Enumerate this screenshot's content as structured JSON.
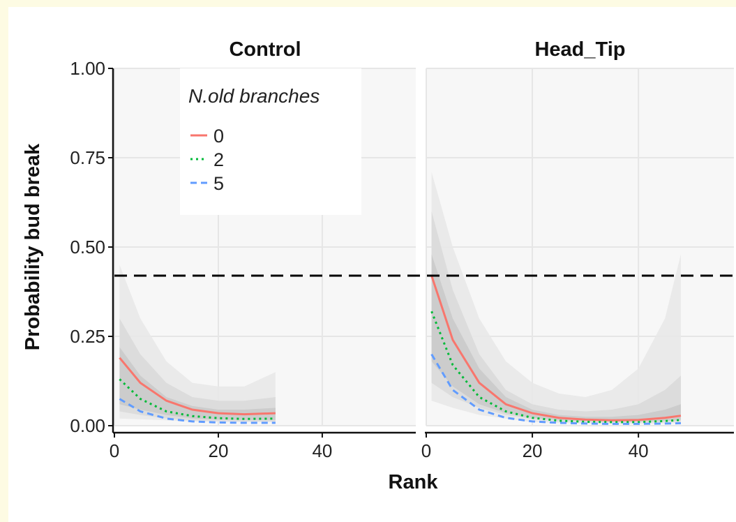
{
  "chart_data": {
    "type": "line",
    "facets": [
      "Control",
      "Head_Tip"
    ],
    "xlabel": "Rank",
    "ylabel": "Probability bud break",
    "xlim": [
      0,
      58
    ],
    "ylim": [
      0,
      1
    ],
    "x_ticks": [
      0,
      20,
      40
    ],
    "x_tick_labels": [
      "0",
      "20",
      "40"
    ],
    "y_ticks": [
      0,
      0.25,
      0.5,
      0.75,
      1.0
    ],
    "y_tick_labels": [
      "0.00",
      "0.25",
      "0.50",
      "0.75",
      "1.00"
    ],
    "reference_line": {
      "y": 0.42,
      "style": "dashed",
      "color": "#000000"
    },
    "legend": {
      "title": "N.old branches",
      "placement": "top-left",
      "entries": [
        {
          "label": "0",
          "color": "#f8766d",
          "dash": "solid"
        },
        {
          "label": "2",
          "color": "#00ba38",
          "dash": "dotted"
        },
        {
          "label": "5",
          "color": "#619cff",
          "dash": "dashed"
        }
      ]
    },
    "grid": true,
    "panels": [
      {
        "facet": "Control",
        "series": [
          {
            "name": "0",
            "x": [
              1,
              5,
              10,
              15,
              20,
              25,
              31
            ],
            "y": [
              0.19,
              0.12,
              0.07,
              0.045,
              0.035,
              0.032,
              0.035
            ]
          },
          {
            "name": "2",
            "x": [
              1,
              5,
              10,
              15,
              20,
              25,
              31
            ],
            "y": [
              0.13,
              0.075,
              0.04,
              0.027,
              0.021,
              0.019,
              0.02
            ]
          },
          {
            "name": "5",
            "x": [
              1,
              5,
              10,
              15,
              20,
              25,
              31
            ],
            "y": [
              0.075,
              0.04,
              0.02,
              0.012,
              0.009,
              0.008,
              0.008
            ]
          }
        ],
        "bands": [
          {
            "x": [
              1,
              5,
              10,
              15,
              20,
              25,
              31
            ],
            "lower": [
              0.02,
              0.018,
              0.015,
              0.012,
              0.01,
              0.01,
              0.01
            ],
            "upper": [
              0.45,
              0.3,
              0.18,
              0.12,
              0.11,
              0.11,
              0.15
            ]
          },
          {
            "x": [
              1,
              5,
              10,
              15,
              20,
              25,
              31
            ],
            "lower": [
              0.04,
              0.03,
              0.02,
              0.015,
              0.013,
              0.012,
              0.012
            ],
            "upper": [
              0.3,
              0.2,
              0.12,
              0.08,
              0.07,
              0.07,
              0.08
            ]
          },
          {
            "x": [
              1,
              5,
              10,
              15,
              20,
              25,
              31
            ],
            "lower": [
              0.06,
              0.045,
              0.03,
              0.02,
              0.017,
              0.016,
              0.016
            ],
            "upper": [
              0.22,
              0.14,
              0.08,
              0.055,
              0.045,
              0.045,
              0.05
            ]
          }
        ]
      },
      {
        "facet": "Head_Tip",
        "series": [
          {
            "name": "0",
            "x": [
              1,
              5,
              10,
              15,
              20,
              25,
              30,
              35,
              40,
              45,
              48
            ],
            "y": [
              0.42,
              0.24,
              0.12,
              0.06,
              0.035,
              0.022,
              0.017,
              0.015,
              0.016,
              0.022,
              0.028
            ]
          },
          {
            "name": "2",
            "x": [
              1,
              5,
              10,
              15,
              20,
              25,
              30,
              35,
              40,
              45,
              48
            ],
            "y": [
              0.32,
              0.17,
              0.08,
              0.04,
              0.022,
              0.014,
              0.011,
              0.01,
              0.01,
              0.013,
              0.016
            ]
          },
          {
            "name": "5",
            "x": [
              1,
              5,
              10,
              15,
              20,
              25,
              30,
              35,
              40,
              45,
              48
            ],
            "y": [
              0.2,
              0.1,
              0.045,
              0.022,
              0.012,
              0.008,
              0.006,
              0.005,
              0.005,
              0.006,
              0.007
            ]
          }
        ],
        "bands": [
          {
            "x": [
              1,
              5,
              10,
              15,
              20,
              25,
              30,
              35,
              40,
              45,
              48
            ],
            "lower": [
              0.07,
              0.05,
              0.03,
              0.02,
              0.01,
              0.008,
              0.006,
              0.005,
              0.005,
              0.006,
              0.008
            ],
            "upper": [
              0.71,
              0.5,
              0.3,
              0.18,
              0.12,
              0.09,
              0.08,
              0.1,
              0.16,
              0.3,
              0.48
            ]
          },
          {
            "x": [
              1,
              5,
              10,
              15,
              20,
              25,
              30,
              35,
              40,
              45,
              48
            ],
            "lower": [
              0.12,
              0.08,
              0.05,
              0.03,
              0.018,
              0.012,
              0.01,
              0.009,
              0.009,
              0.01,
              0.012
            ],
            "upper": [
              0.6,
              0.38,
              0.2,
              0.1,
              0.06,
              0.045,
              0.04,
              0.045,
              0.06,
              0.1,
              0.14
            ]
          },
          {
            "x": [
              1,
              5,
              10,
              15,
              20,
              25,
              30,
              35,
              40,
              45,
              48
            ],
            "lower": [
              0.18,
              0.11,
              0.06,
              0.035,
              0.022,
              0.016,
              0.013,
              0.012,
              0.012,
              0.013,
              0.016
            ],
            "upper": [
              0.48,
              0.3,
              0.16,
              0.08,
              0.045,
              0.03,
              0.025,
              0.025,
              0.03,
              0.045,
              0.06
            ]
          }
        ]
      }
    ]
  }
}
